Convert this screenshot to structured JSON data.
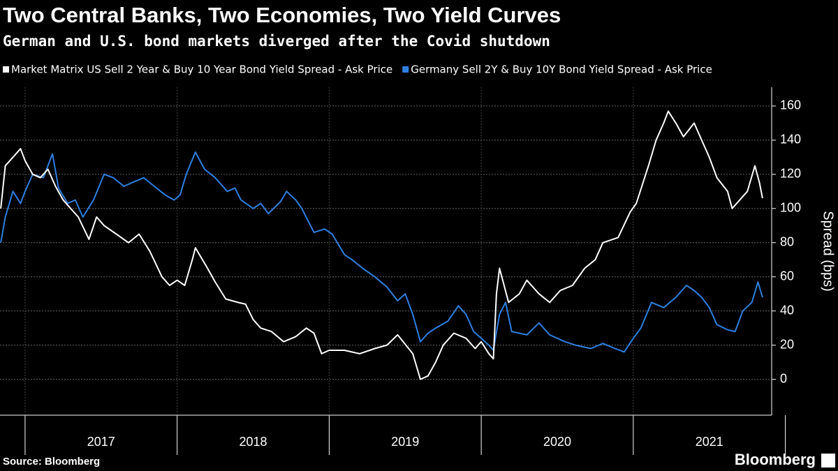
{
  "chart_data": {
    "type": "line",
    "title": "Two Central Banks, Two Economies, Two Yield Curves",
    "subtitle": "German and U.S. bond markets diverged after the Covid shutdown",
    "y_axis_label": "Spread (bps)",
    "source": "Source: Bloomberg",
    "brand": "Bloomberg",
    "grid": true,
    "xlim": [
      2016.835,
      2021.91
    ],
    "ylim": [
      -21,
      171
    ],
    "yticks": [
      0,
      20,
      40,
      60,
      80,
      100,
      120,
      140,
      160
    ],
    "xticks": [
      {
        "value": 2017.5,
        "label": "2017"
      },
      {
        "value": 2018.5,
        "label": "2018"
      },
      {
        "value": 2019.5,
        "label": "2019"
      },
      {
        "value": 2020.5,
        "label": "2020"
      },
      {
        "value": 2021.5,
        "label": "2021"
      }
    ],
    "series": [
      {
        "name": "Market Matrix US Sell 2 Year & Buy 10 Year Bond Yield Spread - Ask Price",
        "color": "#ffffff",
        "x": [
          2016.84,
          2016.87,
          2016.92,
          2016.97,
          2017.0,
          2017.05,
          2017.1,
          2017.15,
          2017.2,
          2017.25,
          2017.3,
          2017.35,
          2017.42,
          2017.47,
          2017.52,
          2017.6,
          2017.68,
          2017.75,
          2017.82,
          2017.9,
          2017.95,
          2018.0,
          2018.05,
          2018.1,
          2018.12,
          2018.2,
          2018.25,
          2018.32,
          2018.4,
          2018.45,
          2018.5,
          2018.55,
          2018.62,
          2018.7,
          2018.78,
          2018.85,
          2018.9,
          2018.95,
          2019.0,
          2019.1,
          2019.2,
          2019.3,
          2019.38,
          2019.45,
          2019.55,
          2019.6,
          2019.65,
          2019.7,
          2019.75,
          2019.82,
          2019.9,
          2019.96,
          2020.0,
          2020.05,
          2020.08,
          2020.1,
          2020.12,
          2020.18,
          2020.25,
          2020.3,
          2020.38,
          2020.45,
          2020.52,
          2020.6,
          2020.68,
          2020.75,
          2020.8,
          2020.9,
          2020.98,
          2021.02,
          2021.1,
          2021.15,
          2021.2,
          2021.23,
          2021.28,
          2021.33,
          2021.4,
          2021.45,
          2021.5,
          2021.55,
          2021.62,
          2021.65,
          2021.7,
          2021.75,
          2021.8,
          2021.83,
          2021.85
        ],
        "values": [
          100,
          125,
          130,
          135,
          128,
          120,
          118,
          123,
          113,
          105,
          100,
          95,
          82,
          95,
          90,
          85,
          80,
          85,
          75,
          60,
          55,
          58,
          55,
          70,
          77,
          65,
          57,
          47,
          45,
          44,
          35,
          30,
          28,
          22,
          25,
          30,
          27,
          15,
          17,
          17,
          15,
          18,
          20,
          26,
          15,
          0,
          2,
          10,
          20,
          27,
          24,
          18,
          22,
          15,
          12,
          50,
          65,
          45,
          50,
          58,
          50,
          45,
          52,
          55,
          65,
          70,
          80,
          83,
          98,
          103,
          125,
          140,
          150,
          157,
          150,
          142,
          150,
          140,
          130,
          118,
          110,
          100,
          105,
          110,
          125,
          115,
          106
        ]
      },
      {
        "name": "Germany Sell 2Y & Buy 10Y Bond Yield Spread - Ask Price",
        "color": "#2f7fe0",
        "x": [
          2016.84,
          2016.87,
          2016.92,
          2016.97,
          2017.0,
          2017.05,
          2017.12,
          2017.18,
          2017.22,
          2017.28,
          2017.33,
          2017.38,
          2017.45,
          2017.52,
          2017.58,
          2017.65,
          2017.7,
          2017.78,
          2017.85,
          2017.92,
          2017.98,
          2018.02,
          2018.06,
          2018.12,
          2018.18,
          2018.25,
          2018.33,
          2018.38,
          2018.42,
          2018.5,
          2018.55,
          2018.6,
          2018.68,
          2018.72,
          2018.78,
          2018.82,
          2018.9,
          2018.97,
          2019.02,
          2019.1,
          2019.15,
          2019.22,
          2019.3,
          2019.38,
          2019.45,
          2019.5,
          2019.55,
          2019.6,
          2019.65,
          2019.7,
          2019.78,
          2019.85,
          2019.9,
          2019.95,
          2020.0,
          2020.05,
          2020.08,
          2020.12,
          2020.16,
          2020.2,
          2020.3,
          2020.38,
          2020.45,
          2020.55,
          2020.62,
          2020.72,
          2020.8,
          2020.88,
          2020.94,
          2021.0,
          2021.05,
          2021.12,
          2021.2,
          2021.28,
          2021.35,
          2021.4,
          2021.45,
          2021.5,
          2021.55,
          2021.62,
          2021.67,
          2021.72,
          2021.78,
          2021.82,
          2021.85
        ],
        "values": [
          80,
          95,
          110,
          103,
          110,
          120,
          118,
          132,
          112,
          103,
          105,
          95,
          105,
          120,
          118,
          113,
          115,
          118,
          113,
          108,
          105,
          108,
          120,
          133,
          123,
          118,
          110,
          112,
          105,
          100,
          103,
          97,
          104,
          110,
          105,
          100,
          86,
          88,
          85,
          73,
          70,
          65,
          60,
          54,
          46,
          50,
          38,
          22,
          27,
          30,
          34,
          43,
          38,
          28,
          24,
          20,
          17,
          38,
          45,
          28,
          26,
          33,
          26,
          22,
          20,
          18,
          21,
          18,
          16,
          24,
          30,
          45,
          42,
          48,
          55,
          52,
          48,
          42,
          32,
          29,
          28,
          40,
          45,
          57,
          48
        ]
      }
    ]
  }
}
